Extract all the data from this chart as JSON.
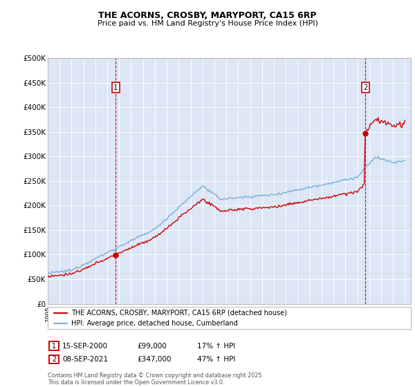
{
  "title1": "THE ACORNS, CROSBY, MARYPORT, CA15 6RP",
  "title2": "Price paid vs. HM Land Registry's House Price Index (HPI)",
  "background_color": "#dce6f5",
  "plot_bg_color": "#dce6f5",
  "red_line_label": "THE ACORNS, CROSBY, MARYPORT, CA15 6RP (detached house)",
  "blue_line_label": "HPI: Average price, detached house, Cumberland",
  "annotation1_label": "1",
  "annotation1_date": "15-SEP-2000",
  "annotation1_price": "£99,000",
  "annotation1_hpi": "17% ↑ HPI",
  "annotation1_year": 2000.71,
  "annotation1_value": 99000,
  "annotation2_label": "2",
  "annotation2_date": "08-SEP-2021",
  "annotation2_price": "£347,000",
  "annotation2_hpi": "47% ↑ HPI",
  "annotation2_year": 2021.69,
  "annotation2_value": 347000,
  "xmin": 1995.0,
  "xmax": 2025.5,
  "ymin": 0,
  "ymax": 500000,
  "yticks": [
    0,
    50000,
    100000,
    150000,
    200000,
    250000,
    300000,
    350000,
    400000,
    450000,
    500000
  ],
  "footer": "Contains HM Land Registry data © Crown copyright and database right 2025.\nThis data is licensed under the Open Government Licence v3.0.",
  "red_color": "#cc0000",
  "blue_color": "#7bafd4"
}
